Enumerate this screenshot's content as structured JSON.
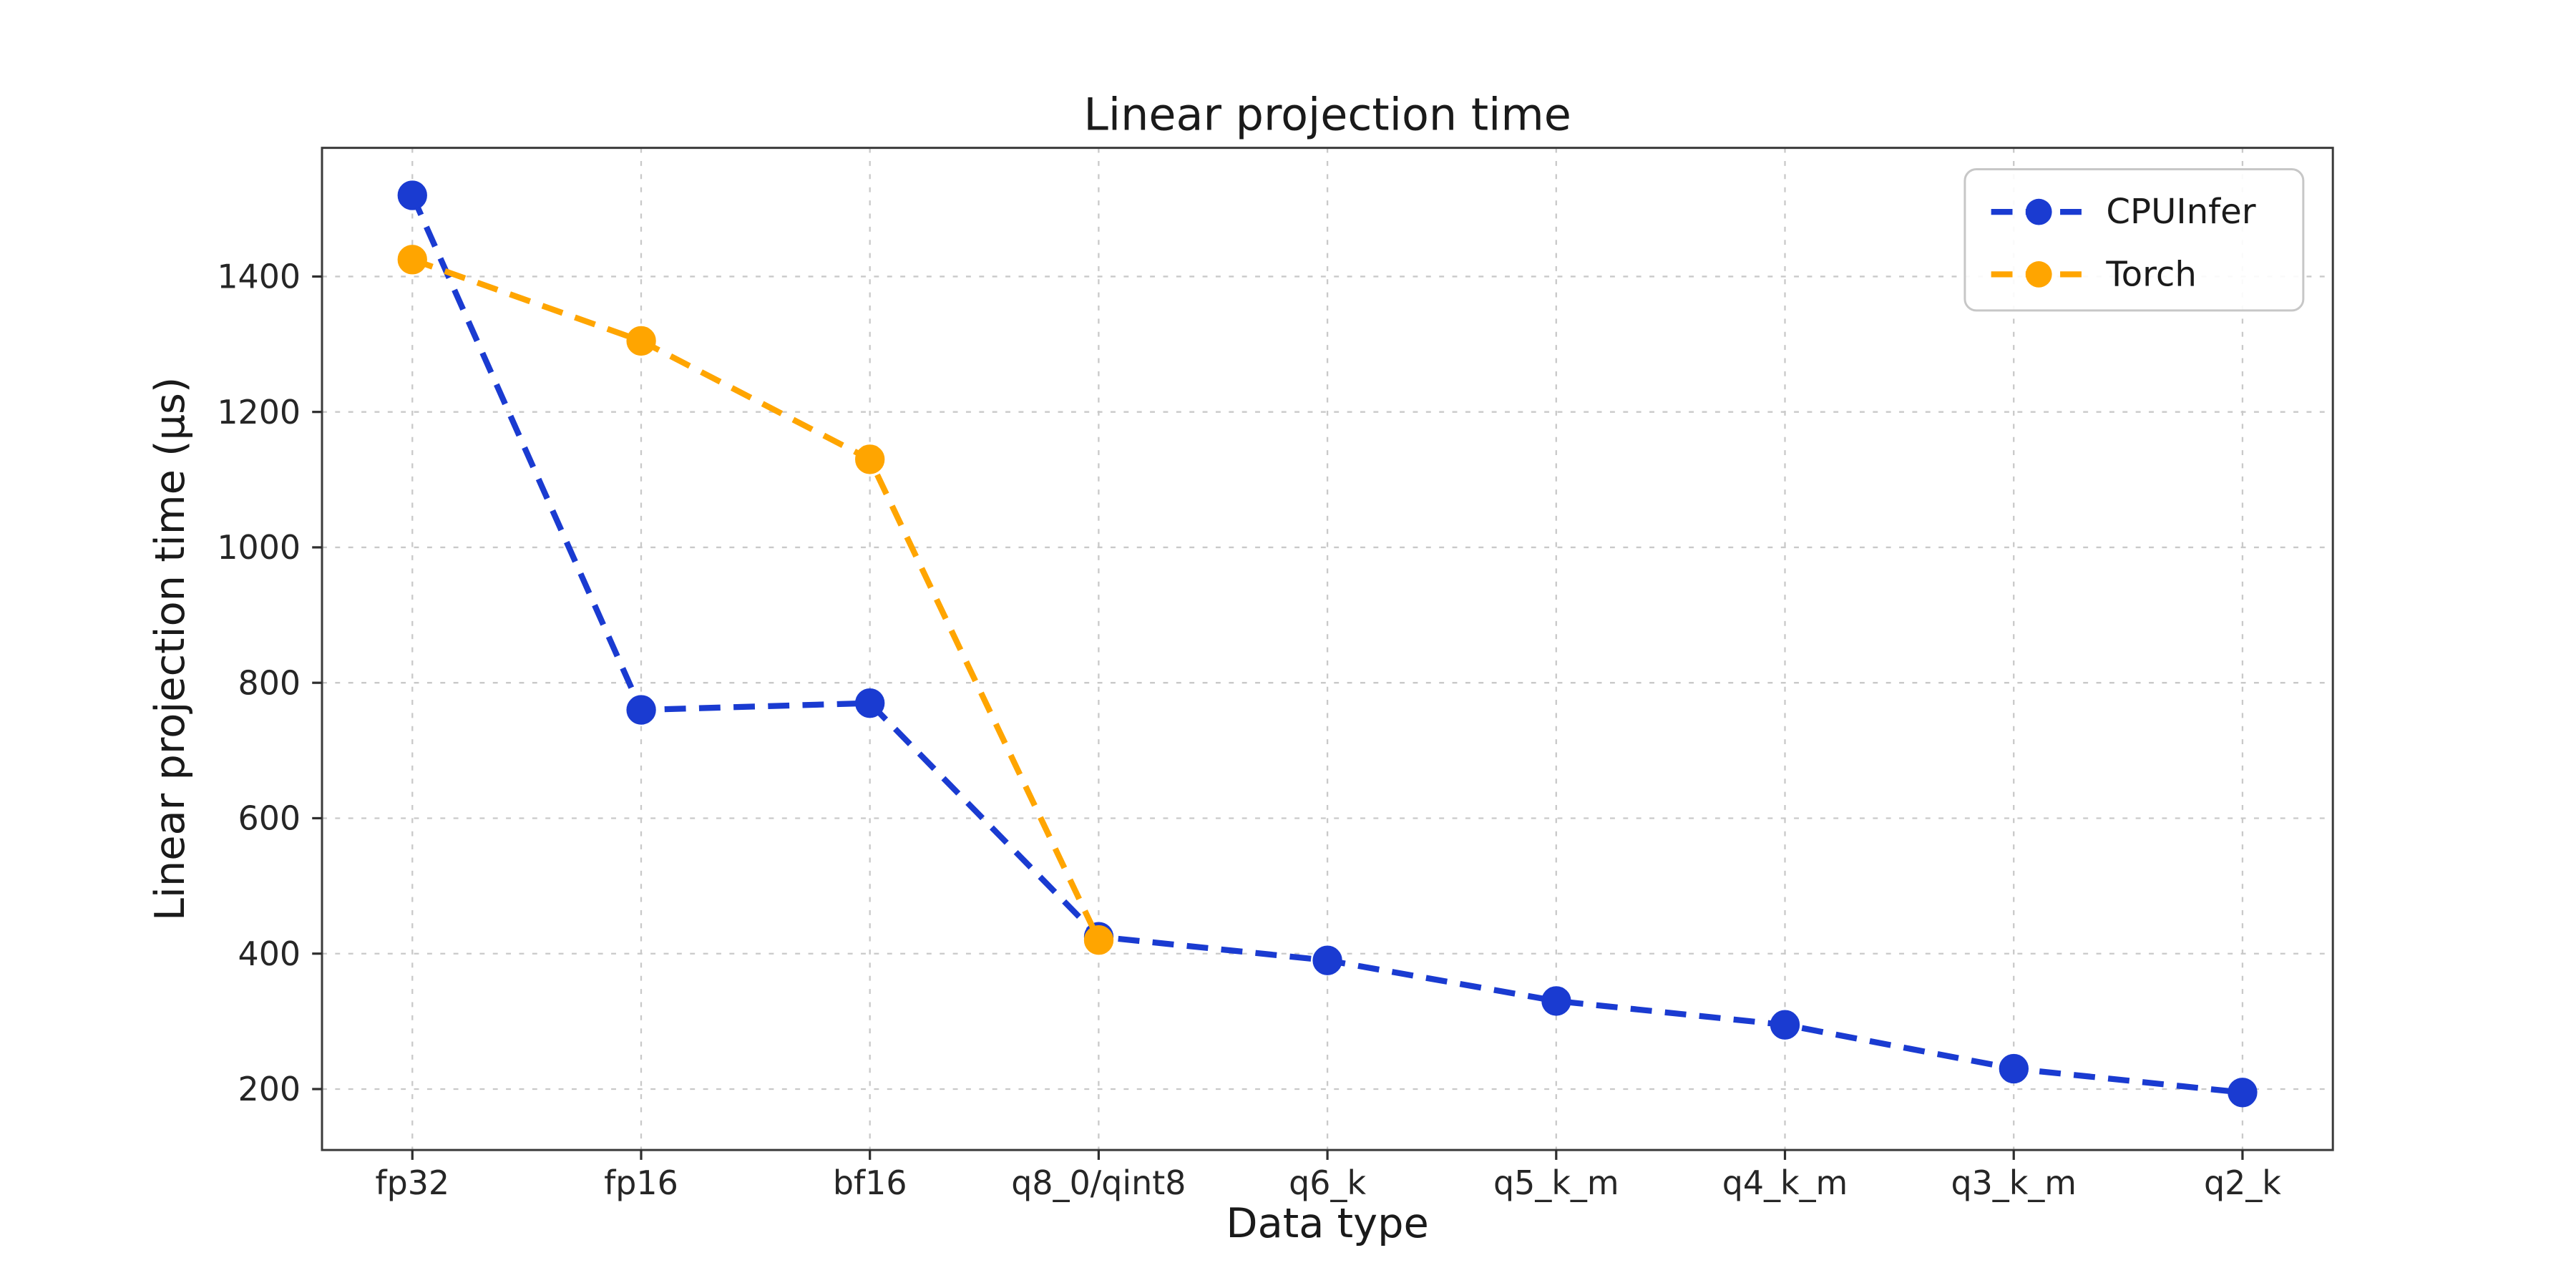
{
  "chart_data": {
    "type": "line",
    "title": "Linear projection time",
    "xlabel": "Data type",
    "ylabel": "Linear projection time (µs)",
    "categories": [
      "fp32",
      "fp16",
      "bf16",
      "q8_0/qint8",
      "q6_k",
      "q5_k_m",
      "q4_k_m",
      "q3_k_m",
      "q2_k"
    ],
    "series": [
      {
        "name": "CPUInfer",
        "color": "#1a3bd1",
        "values": [
          1520,
          760,
          770,
          425,
          390,
          330,
          295,
          230,
          195
        ]
      },
      {
        "name": "Torch",
        "color": "#ffa500",
        "values": [
          1425,
          1305,
          1130,
          420,
          null,
          null,
          null,
          null,
          null
        ]
      }
    ],
    "yticks": [
      200,
      400,
      600,
      800,
      1000,
      1200,
      1400
    ],
    "ylim": [
      110,
      1590
    ],
    "grid": true,
    "grid_style": "dashed",
    "line_style": "dashed",
    "marker": "circle",
    "legend_position": "upper right"
  }
}
